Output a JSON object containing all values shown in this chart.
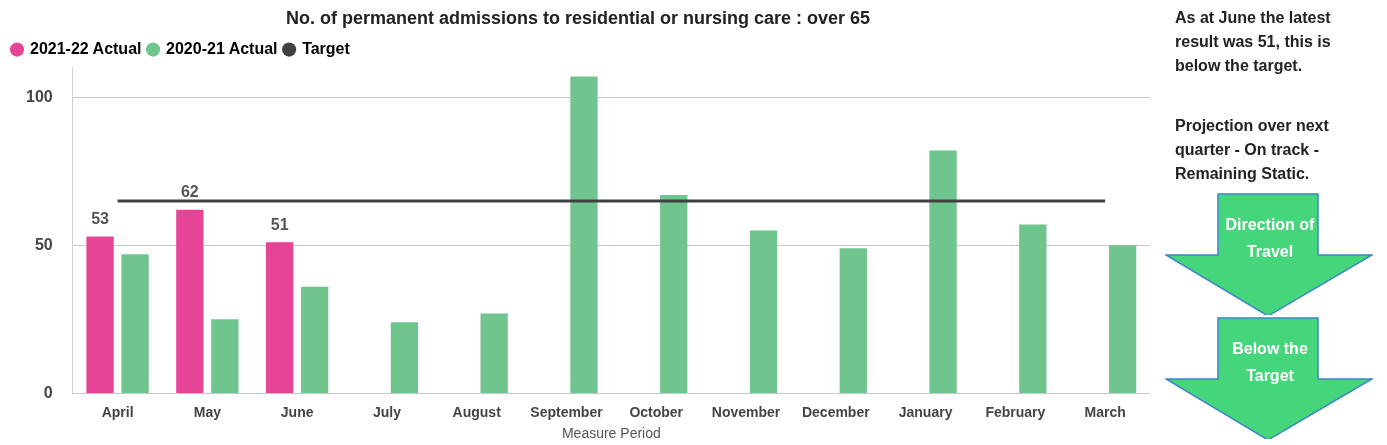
{
  "chart_data": {
    "type": "bar",
    "title": "No. of permanent admissions to residential or nursing care : over 65",
    "xlabel": "Measure Period",
    "categories": [
      "April",
      "May",
      "June",
      "July",
      "August",
      "September",
      "October",
      "November",
      "December",
      "January",
      "February",
      "March"
    ],
    "series": [
      {
        "name": "2021-22 Actual",
        "color": "#e64597",
        "values": [
          53,
          62,
          51,
          null,
          null,
          null,
          null,
          null,
          null,
          null,
          null,
          null
        ],
        "value_labels": [
          "53",
          "62",
          "51",
          null,
          null,
          null,
          null,
          null,
          null,
          null,
          null,
          null
        ]
      },
      {
        "name": "2020-21 Actual",
        "color": "#70c48e",
        "values": [
          47,
          25,
          36,
          24,
          27,
          107,
          67,
          55,
          49,
          82,
          57,
          50
        ]
      },
      {
        "name": "Target",
        "type": "line",
        "color": "#404040",
        "marker": "none",
        "values": [
          65,
          65,
          65,
          65,
          65,
          65,
          65,
          65,
          65,
          65,
          65,
          65
        ]
      }
    ],
    "ylim": [
      0,
      110
    ],
    "yticks": [
      0,
      50,
      100
    ],
    "grid": "y",
    "legend": "top left",
    "annotations": [
      "As at June the latest result was 51, this is below the target.",
      "Projection over next quarter - On track - Remaining Static.",
      "Direction of Travel",
      "Below the Target"
    ]
  }
}
